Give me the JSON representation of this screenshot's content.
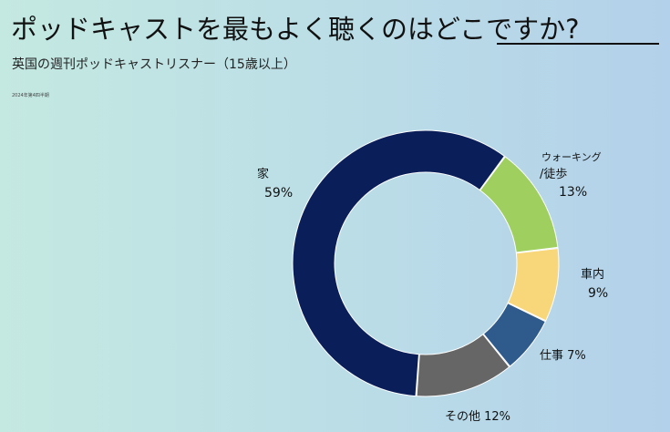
{
  "title": "ポッドキャストを最もよく聴くのはどこですか?",
  "subtitle": "英国の週刊ポッドキャストリスナー（15歳以上）",
  "note": "2024年第4四半期",
  "chart_data": {
    "type": "donut",
    "title": "ポッドキャストを最もよく聴くのはどこですか?",
    "subtitle": "英国の週刊ポッドキャストリスナー（15歳以上）",
    "unit": "%",
    "slices": [
      {
        "label": "ウォーキング/徒歩",
        "value": 13,
        "value_label": "13%",
        "color": "#9fcf5f"
      },
      {
        "label": "車内",
        "value": 9,
        "value_label": "9%",
        "color": "#f8d77a"
      },
      {
        "label": "仕事",
        "value": 7,
        "value_label": "7%",
        "color": "#2f5a8c"
      },
      {
        "label": "その他",
        "value": 12,
        "value_label": "12%",
        "color": "#666666"
      },
      {
        "label": "家",
        "value": 59,
        "value_label": "59%",
        "color": "#0a1e5a"
      }
    ]
  }
}
